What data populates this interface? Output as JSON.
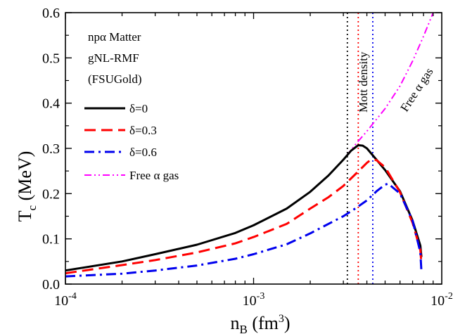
{
  "chart_data": {
    "type": "line",
    "xscale": "log",
    "xlim": [
      0.0001,
      0.01
    ],
    "ylim": [
      0.0,
      0.6
    ],
    "yticks": [
      "0.0",
      "0.1",
      "0.2",
      "0.3",
      "0.4",
      "0.5",
      "0.6"
    ],
    "xticks": [
      {
        "base": "10",
        "exp": "-4"
      },
      {
        "base": "10",
        "exp": "-3"
      },
      {
        "base": "10",
        "exp": "-2"
      }
    ],
    "ylabel": {
      "main": "T",
      "sub": "c",
      "unit": " (MeV)"
    },
    "xlabel": {
      "main": "n",
      "sub": "B",
      "unit": " (fm",
      "sup": "3",
      "close": ")"
    },
    "notes": [
      "npα Matter",
      "gNL-RMF",
      "(FSUGold)"
    ],
    "legend_placement": "left",
    "series": [
      {
        "name": "δ=0",
        "color": "#000000",
        "dash": "solid",
        "x": [
          0.0001,
          0.0002,
          0.0003,
          0.0005,
          0.0008,
          0.001,
          0.0015,
          0.002,
          0.0025,
          0.003,
          0.0033,
          0.0036,
          0.0038,
          0.004,
          0.0045,
          0.005,
          0.006,
          0.007,
          0.0077,
          0.0078
        ],
        "y": [
          0.03,
          0.05,
          0.066,
          0.087,
          0.113,
          0.13,
          0.167,
          0.204,
          0.24,
          0.275,
          0.295,
          0.307,
          0.306,
          0.3,
          0.275,
          0.252,
          0.205,
          0.14,
          0.085,
          0.06
        ]
      },
      {
        "name": "δ=0.3",
        "color": "#ff0000",
        "dash": "long",
        "x": [
          0.0001,
          0.0002,
          0.0003,
          0.0005,
          0.0008,
          0.001,
          0.0015,
          0.002,
          0.0025,
          0.003,
          0.0035,
          0.004,
          0.0042,
          0.0045,
          0.005,
          0.006,
          0.007,
          0.0077,
          0.0078
        ],
        "y": [
          0.024,
          0.042,
          0.053,
          0.07,
          0.09,
          0.104,
          0.133,
          0.167,
          0.192,
          0.217,
          0.244,
          0.268,
          0.275,
          0.274,
          0.258,
          0.203,
          0.135,
          0.075,
          0.045
        ]
      },
      {
        "name": "δ=0.6",
        "color": "#0000ee",
        "dash": "dashdot",
        "x": [
          0.0001,
          0.0002,
          0.0003,
          0.0005,
          0.0008,
          0.001,
          0.0015,
          0.002,
          0.0025,
          0.003,
          0.0035,
          0.004,
          0.0045,
          0.005,
          0.0052,
          0.006,
          0.007,
          0.0077,
          0.0078
        ],
        "y": [
          0.017,
          0.023,
          0.03,
          0.041,
          0.056,
          0.066,
          0.088,
          0.112,
          0.133,
          0.15,
          0.168,
          0.185,
          0.205,
          0.22,
          0.222,
          0.2,
          0.14,
          0.07,
          0.028
        ]
      },
      {
        "name": "Free α gas",
        "color": "#ff00ff",
        "dash": "dashdotdot",
        "x": [
          0.0001,
          0.0002,
          0.0003,
          0.0005,
          0.0008,
          0.001,
          0.0015,
          0.002,
          0.0025,
          0.003,
          0.0035,
          0.004,
          0.005,
          0.006,
          0.007,
          0.008,
          0.009
        ],
        "y": [
          0.03,
          0.05,
          0.066,
          0.087,
          0.113,
          0.13,
          0.167,
          0.204,
          0.24,
          0.275,
          0.31,
          0.338,
          0.388,
          0.438,
          0.493,
          0.548,
          0.6
        ]
      }
    ],
    "vlines": [
      {
        "x": 0.00315,
        "color": "#000000",
        "y": [
          0.0,
          0.6
        ]
      },
      {
        "x": 0.0036,
        "color": "#ff0000",
        "y": [
          0.0,
          0.6
        ]
      },
      {
        "x": 0.0043,
        "color": "#0000ee",
        "y": [
          0.0,
          0.6
        ]
      }
    ],
    "annotations": [
      {
        "text": "Mott density",
        "color": "#000000"
      },
      {
        "text": "Free α gas",
        "color": "#ff00ff"
      }
    ]
  }
}
